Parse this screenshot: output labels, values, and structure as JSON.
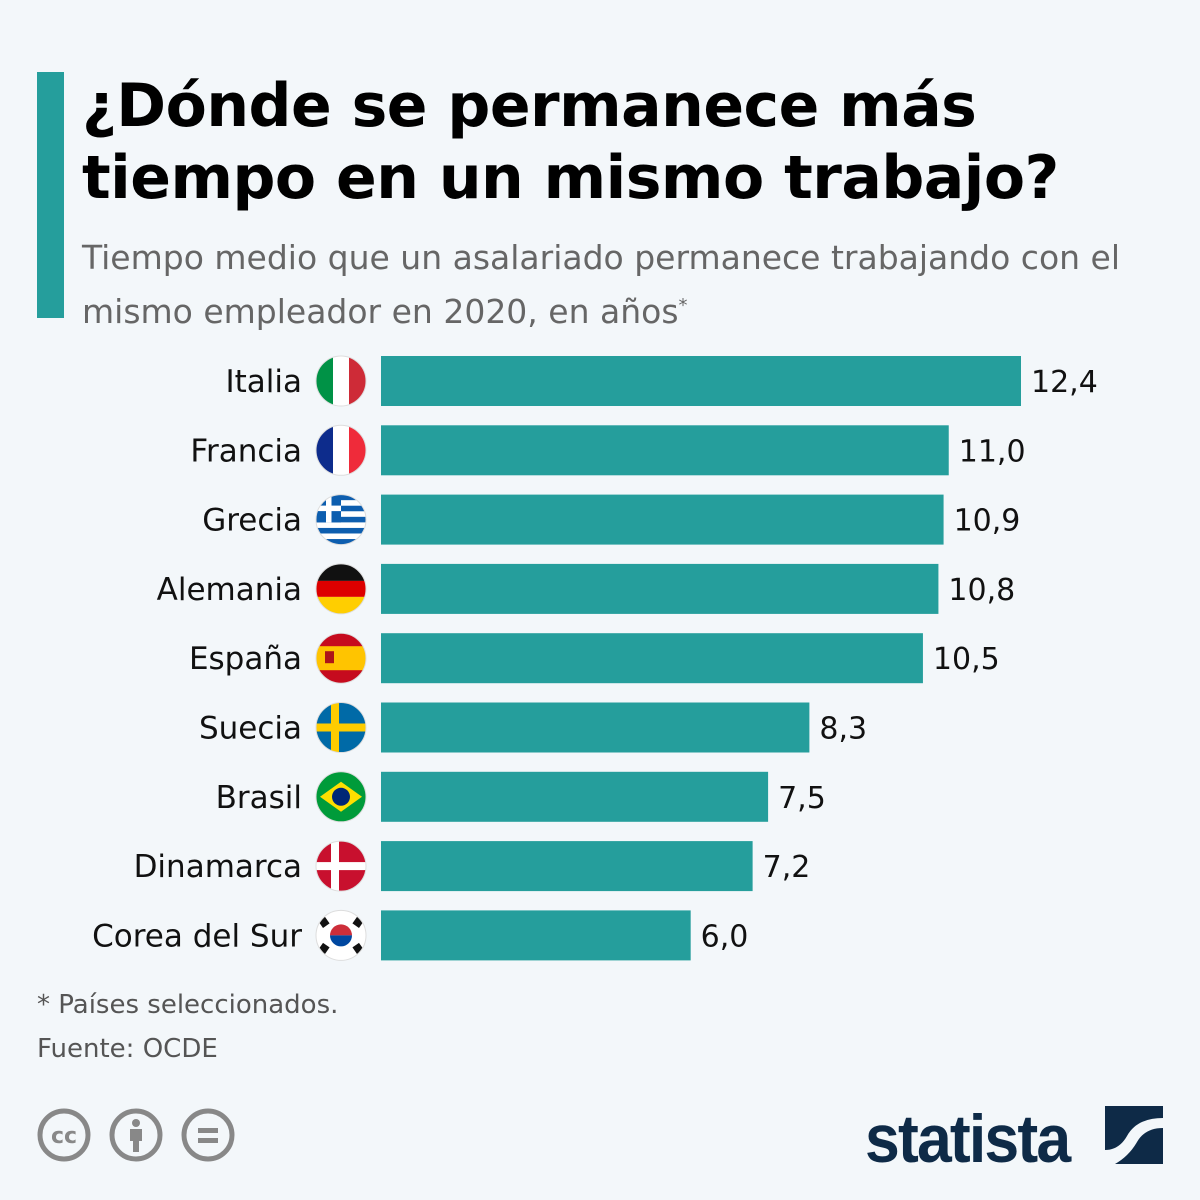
{
  "title": "¿Dónde se permanece más tiempo en un mismo trabajo?",
  "subtitle": "Tiempo medio que un asalariado permanece trabajando con el mismo empleador en 2020, en años",
  "subtitle_mark": "*",
  "footnote": "* Países seleccionados.",
  "source": "Fuente: OCDE",
  "brand": "statista",
  "license_icons": [
    "cc-icon",
    "attribution-icon",
    "no-derivatives-icon"
  ],
  "colors": {
    "bar": "#259e9c",
    "background": "#f3f7fa",
    "brand": "#0e2a47"
  },
  "chart_data": {
    "type": "bar",
    "orientation": "horizontal",
    "categories": [
      "Italia",
      "Francia",
      "Grecia",
      "Alemania",
      "España",
      "Suecia",
      "Brasil",
      "Dinamarca",
      "Corea del Sur"
    ],
    "flags": [
      "it",
      "fr",
      "gr",
      "de",
      "es",
      "se",
      "br",
      "dk",
      "kr"
    ],
    "values": [
      12.4,
      11.0,
      10.9,
      10.8,
      10.5,
      8.3,
      7.5,
      7.2,
      6.0
    ],
    "labels": [
      "12,4",
      "11,0",
      "10,9",
      "10,8",
      "10,5",
      "8,3",
      "7,5",
      "7,2",
      "6,0"
    ],
    "xlim": [
      0,
      12.4
    ],
    "grid": false
  }
}
